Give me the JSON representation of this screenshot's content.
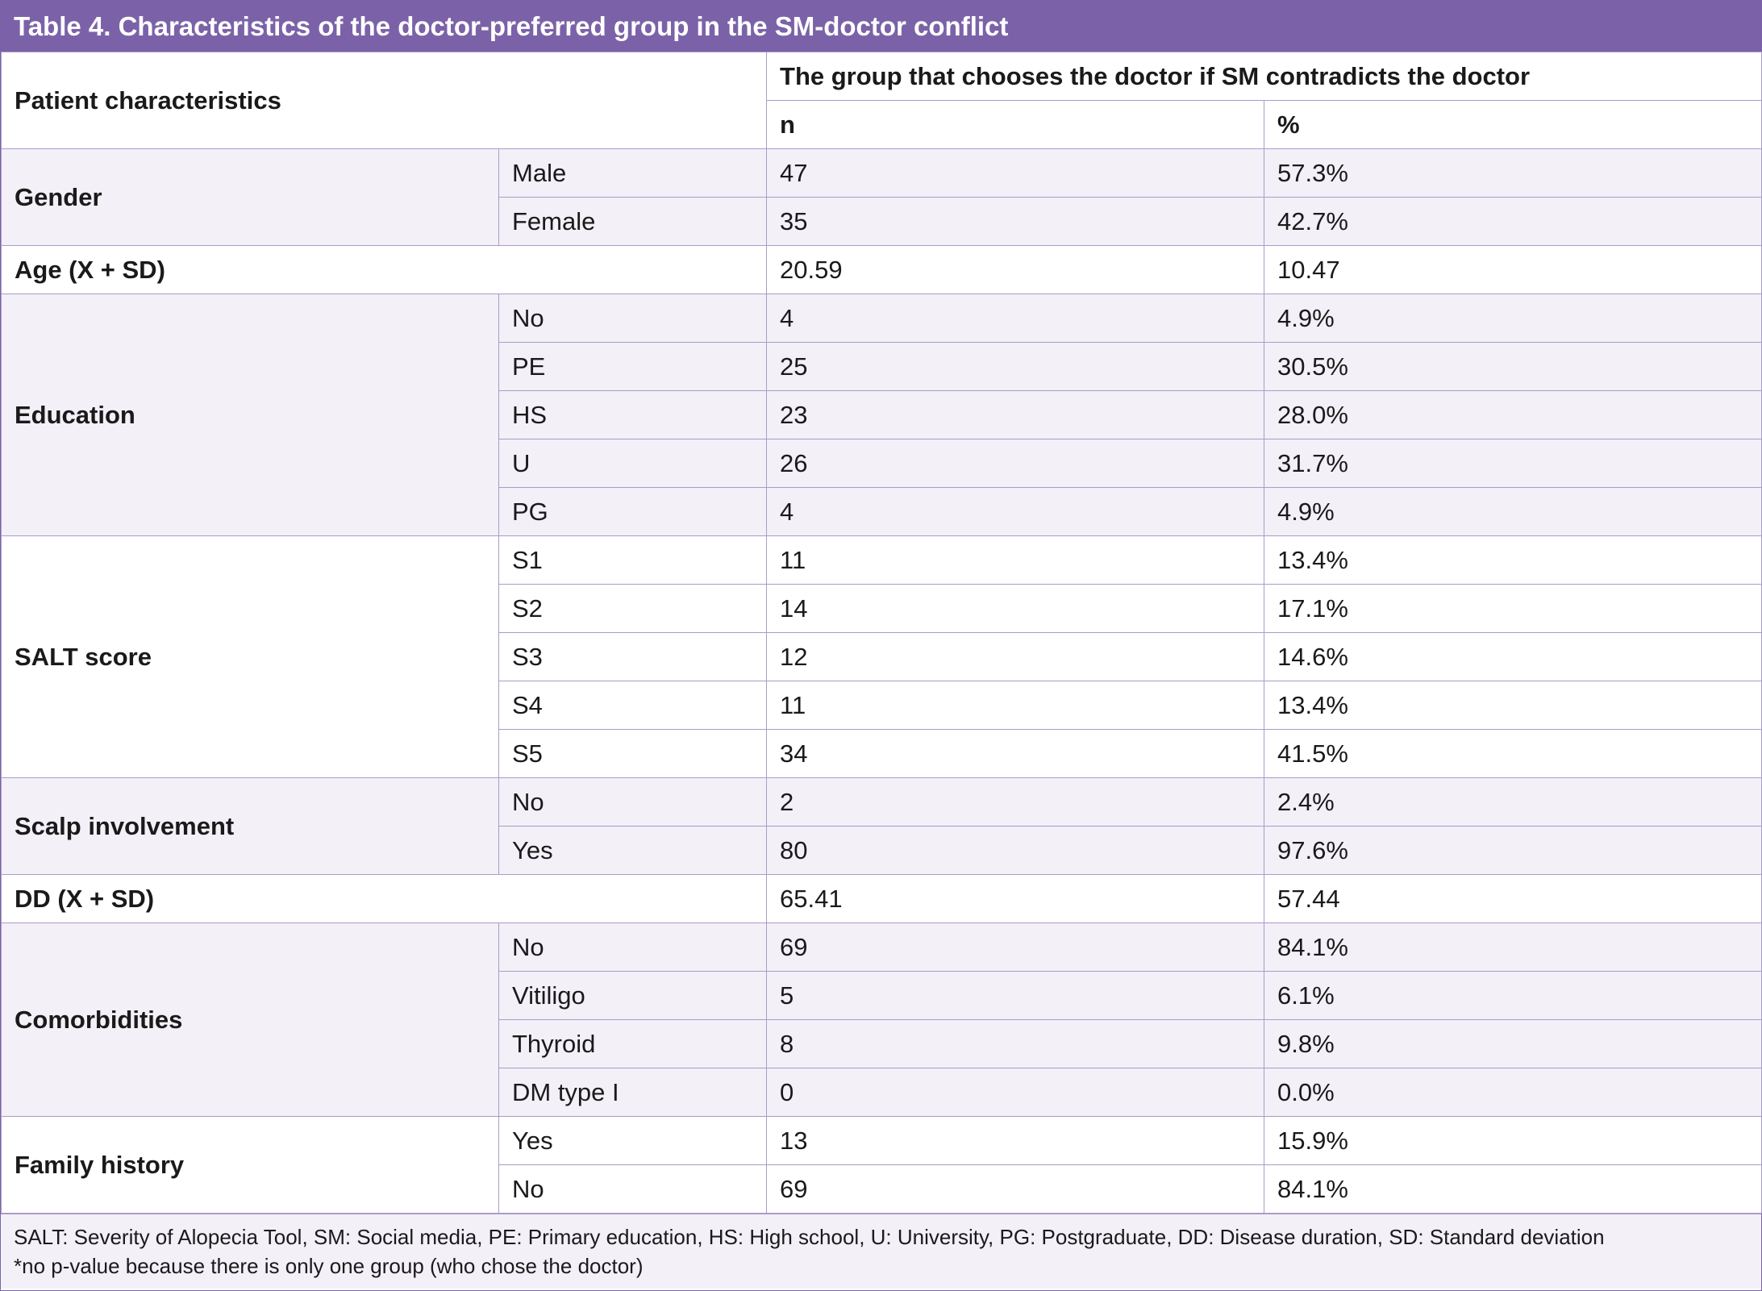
{
  "title": "Table 4. Characteristics of the doctor-preferred group in the SM-doctor conflict",
  "table": {
    "header": {
      "characteristics": "Patient characteristics",
      "group": "The group that chooses the doctor if SM contradicts the doctor",
      "n": "n",
      "percent": "%"
    },
    "groups": [
      {
        "label": "Gender",
        "rows": [
          [
            "Male",
            "47",
            "57.3%"
          ],
          [
            "Female",
            "35",
            "42.7%"
          ]
        ]
      },
      {
        "label": "Age (X + SD)",
        "n": "20.59",
        "percent": "10.47"
      },
      {
        "label": "Education",
        "rows": [
          [
            "No",
            "4",
            "4.9%"
          ],
          [
            "PE",
            "25",
            "30.5%"
          ],
          [
            "HS",
            "23",
            "28.0%"
          ],
          [
            "U",
            "26",
            "31.7%"
          ],
          [
            "PG",
            "4",
            "4.9%"
          ]
        ]
      },
      {
        "label": "SALT score",
        "rows": [
          [
            "S1",
            "11",
            "13.4%"
          ],
          [
            "S2",
            "14",
            "17.1%"
          ],
          [
            "S3",
            "12",
            "14.6%"
          ],
          [
            "S4",
            "11",
            "13.4%"
          ],
          [
            "S5",
            "34",
            "41.5%"
          ]
        ]
      },
      {
        "label": "Scalp involvement",
        "rows": [
          [
            "No",
            "2",
            "2.4%"
          ],
          [
            "Yes",
            "80",
            "97.6%"
          ]
        ]
      },
      {
        "label": "DD (X + SD)",
        "n": "65.41",
        "percent": "57.44"
      },
      {
        "label": "Comorbidities",
        "rows": [
          [
            "No",
            "69",
            "84.1%"
          ],
          [
            "Vitiligo",
            "5",
            "6.1%"
          ],
          [
            "Thyroid",
            "8",
            "9.8%"
          ],
          [
            "DM type I",
            "0",
            "0.0%"
          ]
        ]
      },
      {
        "label": "Family history",
        "rows": [
          [
            "Yes",
            "13",
            "15.9%"
          ],
          [
            "No",
            "69",
            "84.1%"
          ]
        ]
      }
    ]
  },
  "footer": {
    "abbreviations": "SALT: Severity of Alopecia Tool, SM: Social media, PE: Primary education, HS: High school, U: University, PG: Postgraduate, DD: Disease duration, SD: Standard deviation",
    "note": "*no p-value because there is only one group (who chose the doctor)"
  }
}
